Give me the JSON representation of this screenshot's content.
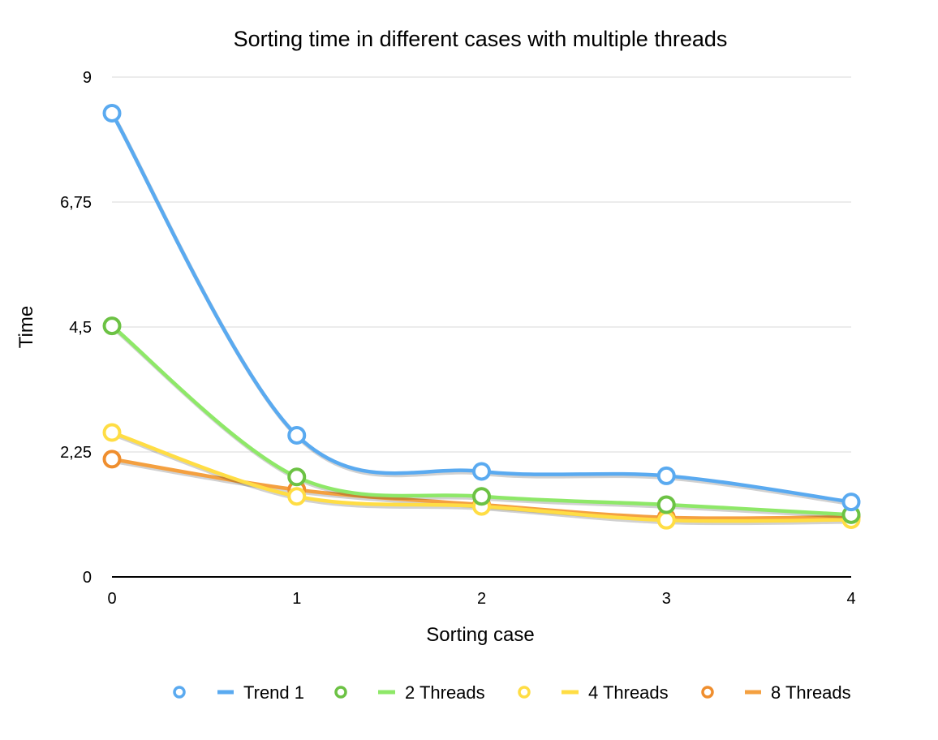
{
  "chart_data": {
    "type": "line",
    "title": "Sorting time in different cases with multiple threads",
    "xlabel": "Sorting case",
    "ylabel": "Time",
    "x": [
      0,
      1,
      2,
      3,
      4
    ],
    "x_tick_labels": [
      "0",
      "1",
      "2",
      "3",
      "4"
    ],
    "ylim": [
      0,
      9
    ],
    "y_ticks": [
      0,
      2.25,
      4.5,
      6.75,
      9
    ],
    "y_tick_labels": [
      "0",
      "2,25",
      "4,5",
      "6,75",
      "9"
    ],
    "grid": true,
    "smooth": true,
    "legend_position": "bottom",
    "series": [
      {
        "name": "Trend 1",
        "values": [
          8.35,
          2.55,
          1.9,
          1.82,
          1.35
        ],
        "color": "#5aaaf0",
        "marker_color": "#5aaaf0"
      },
      {
        "name": "2 Threads",
        "values": [
          4.52,
          1.8,
          1.45,
          1.3,
          1.12
        ],
        "color": "#8ee868",
        "marker_color": "#6cc244"
      },
      {
        "name": "4 Threads",
        "values": [
          2.6,
          1.45,
          1.27,
          1.02,
          1.03
        ],
        "color": "#ffdd44",
        "marker_color": "#ffdd44"
      },
      {
        "name": "8 Threads",
        "values": [
          2.12,
          1.57,
          1.3,
          1.07,
          1.08
        ],
        "color": "#f4a040",
        "marker_color": "#ef8e2e"
      }
    ]
  }
}
